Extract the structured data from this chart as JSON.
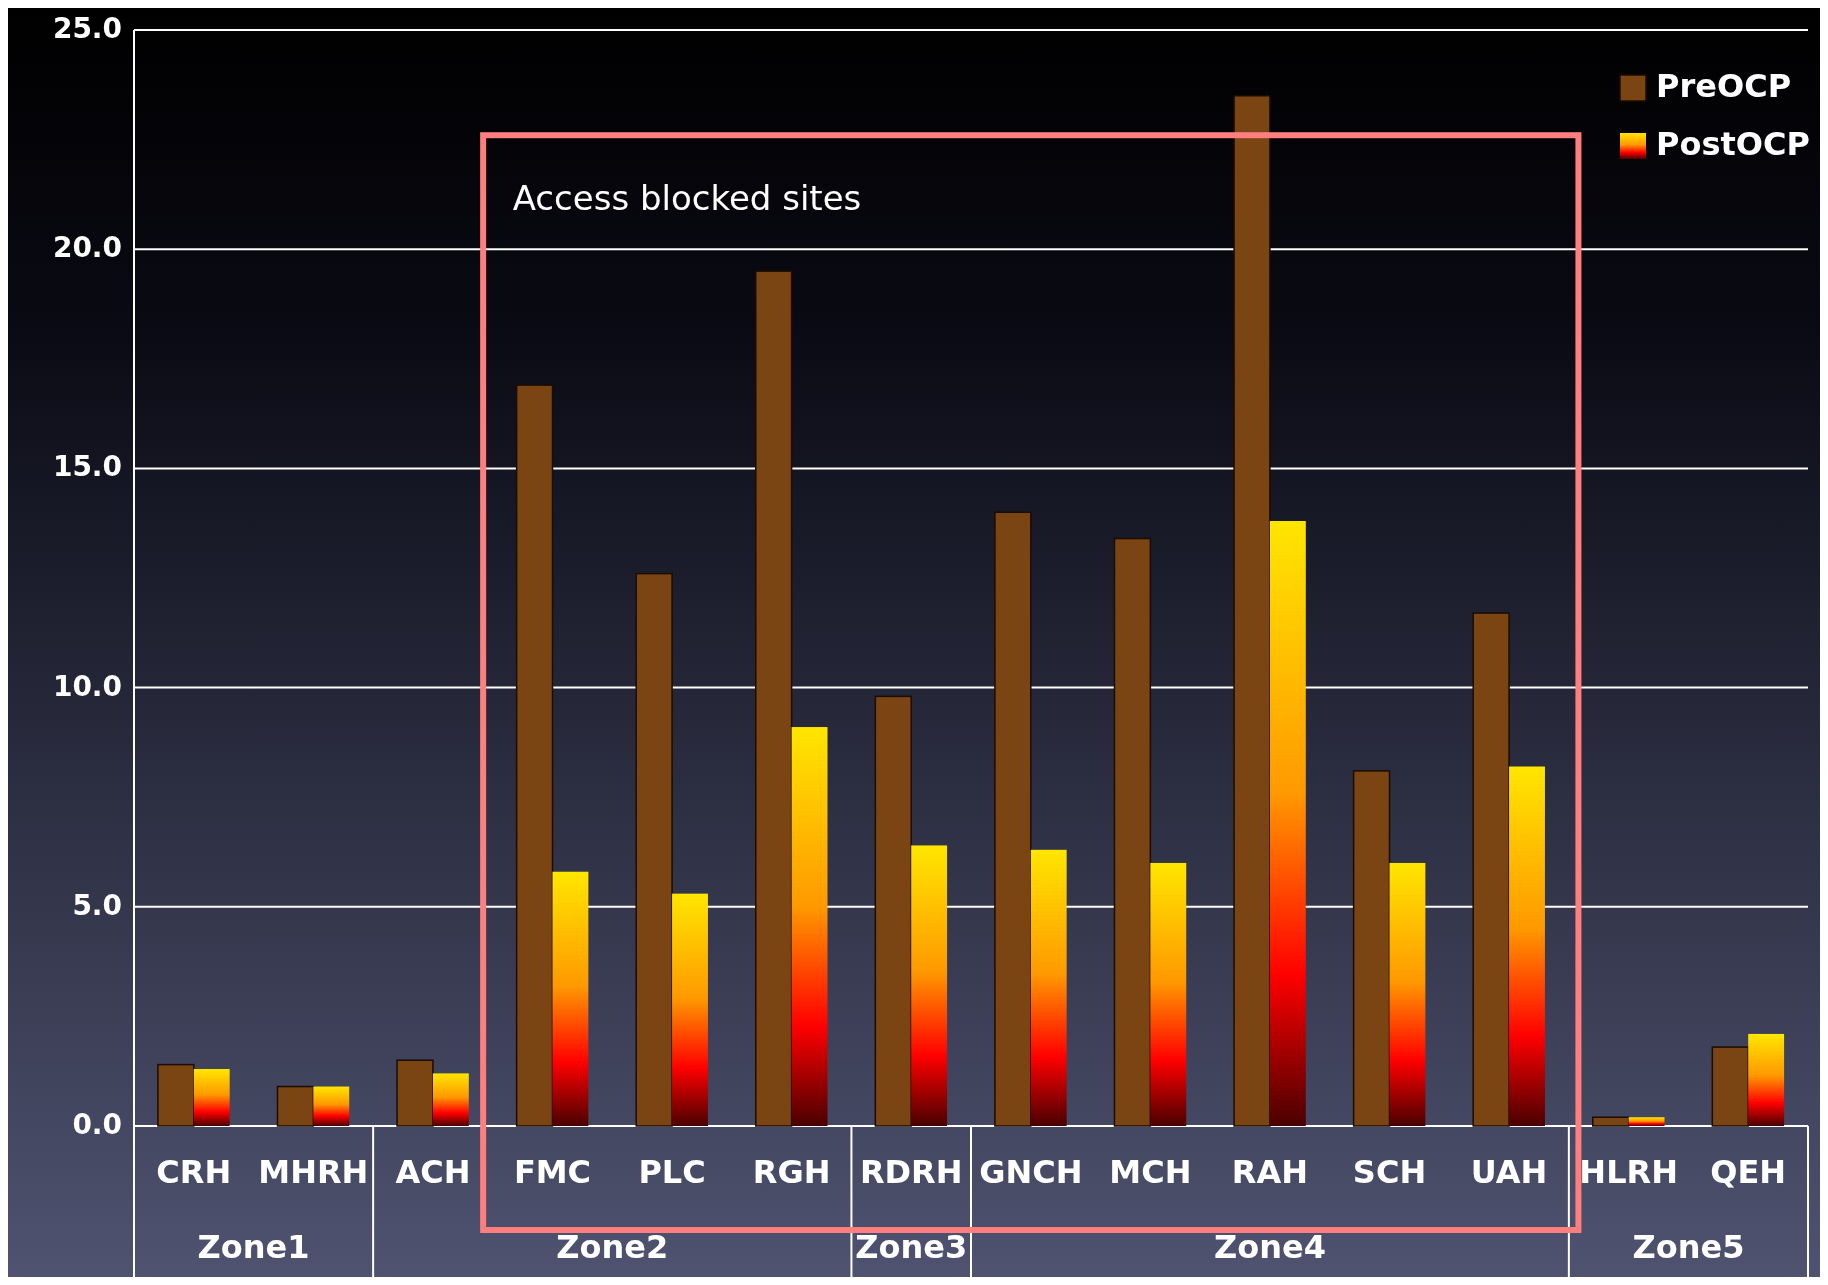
{
  "chart_data": {
    "type": "bar",
    "categories": [
      "CRH",
      "MHRH",
      "ACH",
      "FMC",
      "PLC",
      "RGH",
      "RDRH",
      "GNCH",
      "MCH",
      "RAH",
      "SCH",
      "UAH",
      "HLRH",
      "QEH"
    ],
    "series": [
      {
        "name": "PreOCP",
        "color": "#7b4413",
        "values": [
          1.4,
          0.9,
          1.5,
          16.9,
          12.6,
          19.5,
          9.8,
          14.0,
          13.4,
          23.5,
          8.1,
          11.7,
          0.2,
          1.8
        ]
      },
      {
        "name": "PostOCP",
        "color": "#ffe600",
        "values": [
          1.3,
          0.9,
          1.2,
          5.8,
          5.3,
          9.1,
          6.4,
          6.3,
          6.0,
          13.8,
          6.0,
          8.2,
          0.2,
          2.1
        ]
      }
    ],
    "ylim": [
      0,
      25
    ],
    "yticks": [
      {
        "value": 0,
        "label": "0.0"
      },
      {
        "value": 5,
        "label": "5.0"
      },
      {
        "value": 10,
        "label": "10.0"
      },
      {
        "value": 15,
        "label": "15.0"
      },
      {
        "value": 20,
        "label": "20.0"
      },
      {
        "value": 25,
        "label": "25.0"
      }
    ],
    "grid": "y",
    "legend": "top right",
    "annotations": [
      "Access blocked sites",
      "Zone1",
      "Zone2",
      "Zone3",
      "Zone4",
      "Zone5"
    ]
  }
}
